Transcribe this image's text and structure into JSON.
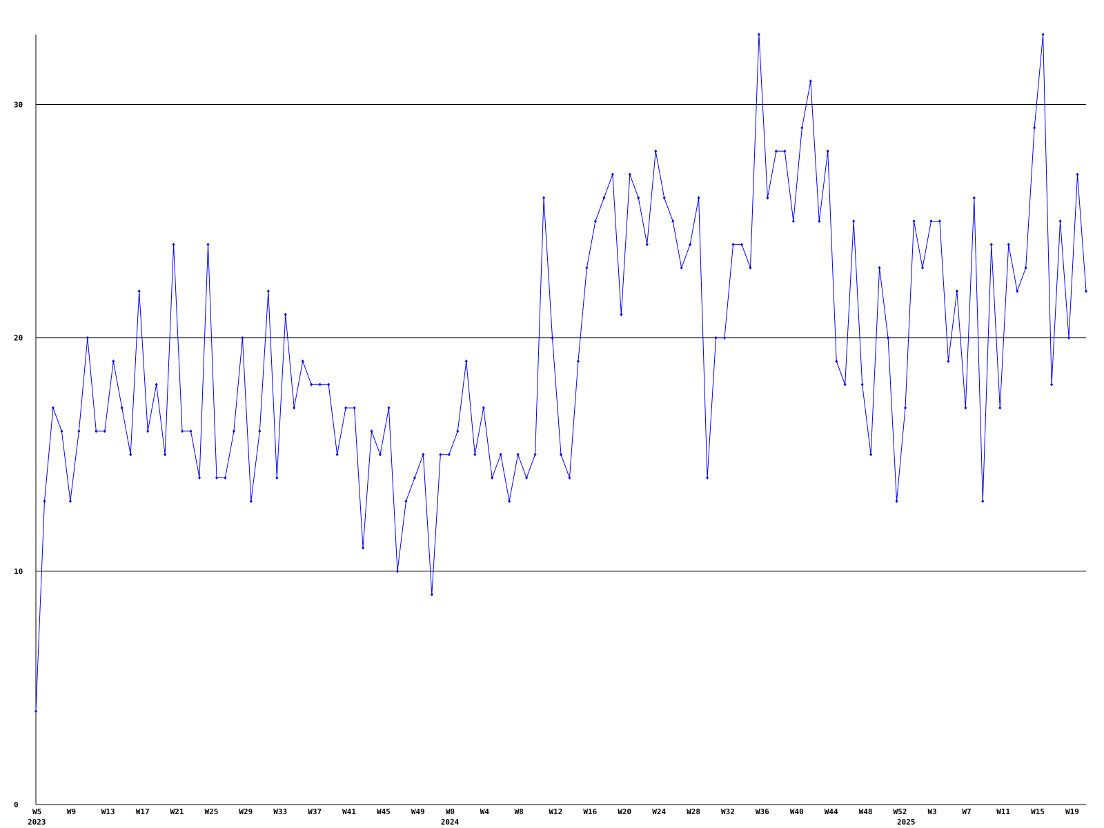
{
  "chart_data": {
    "type": "line",
    "categories": [
      "W5",
      null,
      null,
      null,
      "W9",
      null,
      null,
      null,
      "W13",
      null,
      null,
      null,
      "W17",
      null,
      null,
      null,
      "W21",
      null,
      null,
      null,
      "W25",
      null,
      null,
      null,
      "W29",
      null,
      null,
      null,
      "W33",
      null,
      null,
      null,
      "W37",
      null,
      null,
      null,
      "W41",
      null,
      null,
      null,
      "W45",
      null,
      null,
      null,
      "W49",
      null,
      null,
      null,
      "W0",
      null,
      null,
      null,
      "W4",
      null,
      null,
      null,
      "W8",
      null,
      null,
      null,
      "W12",
      null,
      null,
      null,
      "W16",
      null,
      null,
      null,
      "W20",
      null,
      null,
      null,
      "W24",
      null,
      null,
      null,
      "W28",
      null,
      null,
      null,
      "W32",
      null,
      null,
      null,
      "W36",
      null,
      null,
      null,
      "W40",
      null,
      null,
      null,
      "W44",
      null,
      null,
      null,
      "W48",
      null,
      null,
      null,
      "W52",
      null,
      null,
      null,
      "W3",
      null,
      null,
      null,
      "W7",
      null,
      null,
      null,
      "W11",
      null,
      null,
      null,
      "W15",
      null,
      null,
      null,
      "W19",
      null,
      null
    ],
    "category_groups": [
      {
        "label": "2023",
        "size": 48
      },
      {
        "label": "2024",
        "size": 53
      },
      {
        "label": "2025",
        "size": 22
      }
    ],
    "series": [
      {
        "color": "#0000ff",
        "values": [
          4,
          13,
          17,
          16,
          13,
          16,
          20,
          16,
          16,
          19,
          17,
          15,
          22,
          16,
          18,
          15,
          24,
          16,
          16,
          14,
          24,
          14,
          14,
          16,
          20,
          13,
          16,
          22,
          14,
          21,
          17,
          19,
          18,
          18,
          18,
          15,
          17,
          17,
          11,
          16,
          15,
          17,
          10,
          13,
          14,
          15,
          9,
          15,
          15,
          16,
          19,
          15,
          17,
          14,
          15,
          13,
          15,
          14,
          15,
          26,
          20,
          15,
          14,
          19,
          23,
          25,
          26,
          27,
          21,
          27,
          26,
          24,
          28,
          26,
          25,
          23,
          24,
          26,
          14,
          20,
          20,
          24,
          24,
          23,
          33,
          26,
          28,
          28,
          25,
          29,
          31,
          25,
          28,
          19,
          18,
          25,
          18,
          15,
          23,
          20,
          13,
          17,
          25,
          23,
          25,
          25,
          19,
          22,
          17,
          26,
          13,
          24,
          17,
          24,
          22,
          23,
          29,
          33,
          18,
          25,
          20,
          27,
          22
        ]
      }
    ],
    "ylim": [
      0,
      33
    ],
    "yticks": [
      0,
      10,
      20,
      30
    ],
    "grid": true
  }
}
